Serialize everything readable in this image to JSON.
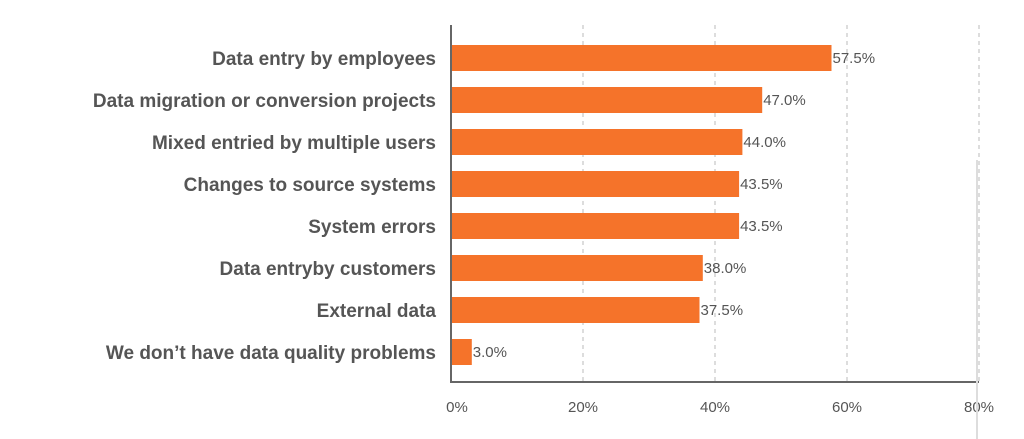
{
  "chart_data": {
    "type": "bar",
    "orientation": "horizontal",
    "categories": [
      "Data entry by employees",
      "Data migration or conversion projects",
      "Mixed entried by multiple users",
      "Changes to source systems",
      "System errors",
      "Data entryby customers",
      "External data",
      "We don’t have data quality problems"
    ],
    "values": [
      57.5,
      47.0,
      44.0,
      43.5,
      43.5,
      38.0,
      37.5,
      3.0
    ],
    "value_labels": [
      "57.5%",
      "47.0%",
      "44.0%",
      "43.5%",
      "43.5%",
      "38.0%",
      "37.5%",
      "3.0%"
    ],
    "xlim": [
      0,
      80
    ],
    "x_ticks": [
      0,
      20,
      40,
      60,
      80
    ],
    "x_tick_labels": [
      "0%",
      "20%",
      "40%",
      "60%",
      "80%"
    ],
    "grid": "vertical dashed",
    "bar_color": "#f5732a",
    "title": "",
    "xlabel": "",
    "ylabel": ""
  }
}
